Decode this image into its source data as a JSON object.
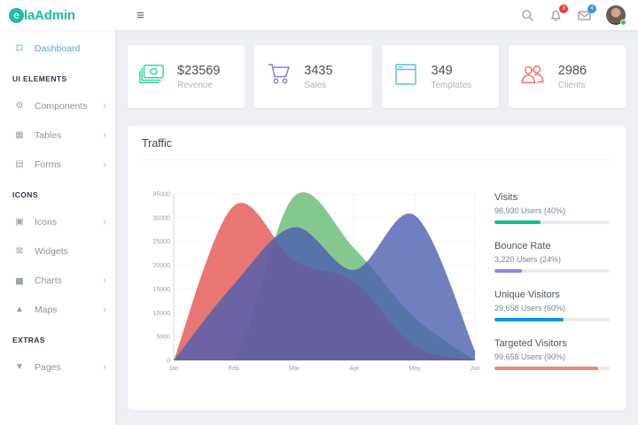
{
  "app": {
    "logo_mark": "e",
    "logo_prefix": "la",
    "logo_suffix": "Admin",
    "brand_color": "#1cbfa2"
  },
  "glyphs": {
    "menu": "≡",
    "chevron": "›",
    "dashboard": "⊡",
    "components": "⚙",
    "tables": "▦",
    "forms": "▤",
    "icons": "▣",
    "widgets": "⊠",
    "charts": "▅",
    "maps": "▲",
    "pages": "▼"
  },
  "header": {
    "badges": {
      "notifications": "3",
      "messages": "4"
    }
  },
  "sidebar": {
    "sections": [
      {
        "header": "",
        "items": [
          {
            "label": "Dashboard",
            "active": true
          }
        ]
      },
      {
        "header": "UI ELEMENTS",
        "items": [
          {
            "label": "Components"
          },
          {
            "label": "Tables"
          },
          {
            "label": "Forms"
          }
        ]
      },
      {
        "header": "ICONS",
        "items": [
          {
            "label": "Icons"
          },
          {
            "label": "Widgets"
          },
          {
            "label": "Charts"
          },
          {
            "label": "Maps"
          }
        ]
      },
      {
        "header": "EXTRAS",
        "items": [
          {
            "label": "Pages"
          }
        ]
      }
    ]
  },
  "stats_cards": [
    {
      "value": "$23569",
      "label": "Revenue",
      "icon": "money-icon",
      "color": "#2ed3a2"
    },
    {
      "value": "3435",
      "label": "Sales",
      "icon": "cart-icon",
      "color": "#8e7fe0"
    },
    {
      "value": "349",
      "label": "Templates",
      "icon": "browser-icon",
      "color": "#54c2ee"
    },
    {
      "value": "2986",
      "label": "Clients",
      "icon": "users-icon",
      "color": "#f8695f"
    }
  ],
  "traffic": {
    "title": "Traffic",
    "stats": [
      {
        "label": "Visits",
        "value": "96,930 Users (40%)",
        "percent": 40,
        "color": "#10c08c"
      },
      {
        "label": "Bounce Rate",
        "value": "3,220 Users (24%)",
        "percent": 24,
        "color": "#9283e8"
      },
      {
        "label": "Unique Visitors",
        "value": "29,658 Users (60%)",
        "percent": 60,
        "color": "#1191e8"
      },
      {
        "label": "Targeted Visitors",
        "value": "99,658 Users (90%)",
        "percent": 90,
        "color": "#ef8a76"
      }
    ]
  },
  "chart_data": {
    "type": "area",
    "title": "Traffic",
    "x": [
      "Jan",
      "Feb",
      "Mar",
      "Apr",
      "May",
      "Jun"
    ],
    "series": [
      {
        "name": "green",
        "color": "#63b86e",
        "opacity": 0.78,
        "values": [
          0,
          0,
          34500,
          23500,
          9000,
          0
        ]
      },
      {
        "name": "red",
        "color": "#e2504b",
        "opacity": 0.78,
        "values": [
          0,
          32500,
          21000,
          16500,
          3000,
          0
        ]
      },
      {
        "name": "purple",
        "color": "#4b5fb0",
        "opacity": 0.8,
        "values": [
          0,
          16000,
          28000,
          19000,
          30500,
          2000
        ]
      }
    ],
    "ylim": [
      0,
      35000
    ],
    "yticks": [
      0,
      5000,
      10000,
      15000,
      20000,
      25000,
      30000,
      35000
    ],
    "grid": true,
    "legend": "none",
    "xlabel": "",
    "ylabel": ""
  }
}
